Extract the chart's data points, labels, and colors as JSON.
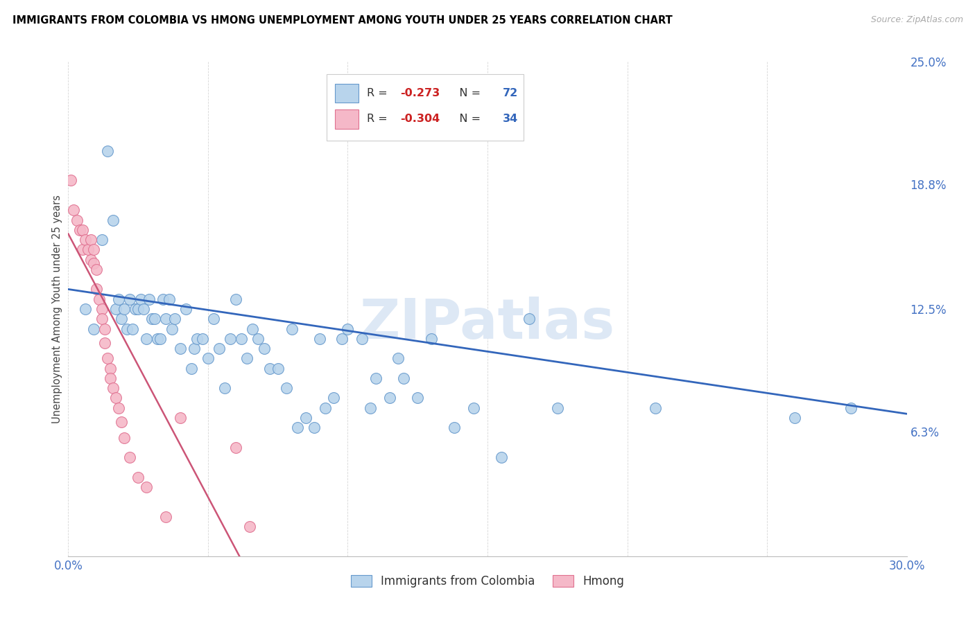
{
  "title": "IMMIGRANTS FROM COLOMBIA VS HMONG UNEMPLOYMENT AMONG YOUTH UNDER 25 YEARS CORRELATION CHART",
  "source": "Source: ZipAtlas.com",
  "ylabel": "Unemployment Among Youth under 25 years",
  "xlim": [
    0.0,
    0.3
  ],
  "ylim": [
    0.0,
    0.25
  ],
  "right_yticks": [
    0.063,
    0.125,
    0.188,
    0.25
  ],
  "right_yticklabels": [
    "6.3%",
    "12.5%",
    "18.8%",
    "25.0%"
  ],
  "colombia_color": "#b8d4ec",
  "hmong_color": "#f5b8c8",
  "colombia_edge_color": "#6699cc",
  "hmong_edge_color": "#e07090",
  "colombia_trend_color": "#3366bb",
  "hmong_trend_color": "#cc5577",
  "legend_r_colombia": "-0.273",
  "legend_n_colombia": "72",
  "legend_r_hmong": "-0.304",
  "legend_n_hmong": "34",
  "watermark": "ZIPatlas",
  "colombia_x": [
    0.006,
    0.009,
    0.012,
    0.014,
    0.016,
    0.017,
    0.018,
    0.019,
    0.02,
    0.021,
    0.022,
    0.023,
    0.024,
    0.025,
    0.026,
    0.027,
    0.028,
    0.029,
    0.03,
    0.031,
    0.032,
    0.033,
    0.034,
    0.035,
    0.036,
    0.037,
    0.038,
    0.04,
    0.042,
    0.044,
    0.045,
    0.046,
    0.048,
    0.05,
    0.052,
    0.054,
    0.056,
    0.058,
    0.06,
    0.062,
    0.064,
    0.066,
    0.068,
    0.07,
    0.072,
    0.075,
    0.078,
    0.08,
    0.082,
    0.085,
    0.088,
    0.09,
    0.092,
    0.095,
    0.098,
    0.1,
    0.105,
    0.108,
    0.11,
    0.115,
    0.118,
    0.12,
    0.125,
    0.13,
    0.138,
    0.145,
    0.155,
    0.165,
    0.175,
    0.21,
    0.26,
    0.28
  ],
  "colombia_y": [
    0.125,
    0.115,
    0.16,
    0.205,
    0.17,
    0.125,
    0.13,
    0.12,
    0.125,
    0.115,
    0.13,
    0.115,
    0.125,
    0.125,
    0.13,
    0.125,
    0.11,
    0.13,
    0.12,
    0.12,
    0.11,
    0.11,
    0.13,
    0.12,
    0.13,
    0.115,
    0.12,
    0.105,
    0.125,
    0.095,
    0.105,
    0.11,
    0.11,
    0.1,
    0.12,
    0.105,
    0.085,
    0.11,
    0.13,
    0.11,
    0.1,
    0.115,
    0.11,
    0.105,
    0.095,
    0.095,
    0.085,
    0.115,
    0.065,
    0.07,
    0.065,
    0.11,
    0.075,
    0.08,
    0.11,
    0.115,
    0.11,
    0.075,
    0.09,
    0.08,
    0.1,
    0.09,
    0.08,
    0.11,
    0.065,
    0.075,
    0.05,
    0.12,
    0.075,
    0.075,
    0.07,
    0.075
  ],
  "hmong_x": [
    0.001,
    0.002,
    0.003,
    0.004,
    0.005,
    0.005,
    0.006,
    0.007,
    0.008,
    0.008,
    0.009,
    0.009,
    0.01,
    0.01,
    0.011,
    0.012,
    0.012,
    0.013,
    0.013,
    0.014,
    0.015,
    0.015,
    0.016,
    0.017,
    0.018,
    0.019,
    0.02,
    0.022,
    0.025,
    0.028,
    0.035,
    0.04,
    0.06,
    0.065
  ],
  "hmong_y": [
    0.19,
    0.175,
    0.17,
    0.165,
    0.165,
    0.155,
    0.16,
    0.155,
    0.16,
    0.15,
    0.155,
    0.148,
    0.145,
    0.135,
    0.13,
    0.125,
    0.12,
    0.115,
    0.108,
    0.1,
    0.095,
    0.09,
    0.085,
    0.08,
    0.075,
    0.068,
    0.06,
    0.05,
    0.04,
    0.035,
    0.02,
    0.07,
    0.055,
    0.015
  ]
}
